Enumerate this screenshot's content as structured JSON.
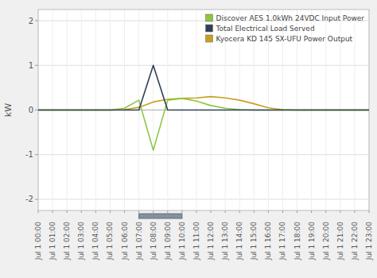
{
  "chart_data": {
    "type": "line",
    "title": "",
    "ylabel": "kW",
    "categories": [
      "Jul 1 00:00",
      "Jul 1 01:00",
      "Jul 1 02:00",
      "Jul 1 03:00",
      "Jul 1 04:00",
      "Jul 1 05:00",
      "Jul 1 06:00",
      "Jul 1 07:00",
      "Jul 1 08:00",
      "Jul 1 09:00",
      "Jul 1 10:00",
      "Jul 1 11:00",
      "Jul 1 12:00",
      "Jul 1 13:00",
      "Jul 1 14:00",
      "Jul 1 15:00",
      "Jul 1 16:00",
      "Jul 1 17:00",
      "Jul 1 18:00",
      "Jul 1 19:00",
      "Jul 1 20:00",
      "Jul 1 21:00",
      "Jul 1 22:00",
      "Jul 1 23:00"
    ],
    "series": [
      {
        "name": "Discover AES 1.0kWh 24VDC Input Power",
        "color": "#8dc63f",
        "values": [
          0,
          0,
          0,
          0,
          0,
          0,
          0.04,
          0.22,
          -0.9,
          0.22,
          0.26,
          0.2,
          0.1,
          0.04,
          0.01,
          0,
          0,
          0,
          0,
          0,
          0,
          0,
          0,
          0
        ]
      },
      {
        "name": "Total Electrical Load Served",
        "color": "#2e4057",
        "values": [
          0,
          0,
          0,
          0,
          0,
          0,
          0,
          0.0,
          1.0,
          0.0,
          0.0,
          0.0,
          0.0,
          0.0,
          0.0,
          0,
          0,
          0,
          0,
          0,
          0,
          0,
          0,
          0
        ]
      },
      {
        "name": "Kyocera KD 145 SX-UFU Power Output",
        "color": "#c8a020",
        "values": [
          0,
          0,
          0,
          0,
          0,
          0,
          0.01,
          0.06,
          0.18,
          0.24,
          0.26,
          0.27,
          0.3,
          0.27,
          0.22,
          0.14,
          0.05,
          0.01,
          0,
          0,
          0,
          0,
          0,
          0
        ]
      }
    ],
    "x_band": {
      "start": "Jul 1 07:00",
      "end": "Jul 1 10:00",
      "color": "#607080"
    },
    "ylim": [
      -2.25,
      2.25
    ],
    "yticks": [
      -2,
      -1,
      0,
      1,
      2
    ],
    "grid": true,
    "legend": "upper right"
  }
}
